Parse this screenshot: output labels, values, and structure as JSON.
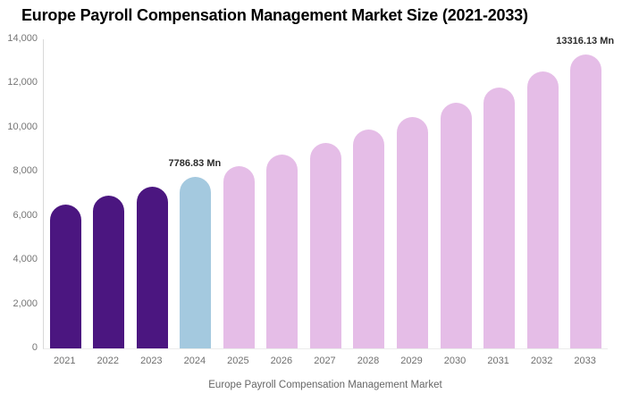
{
  "chart_data": {
    "type": "bar",
    "title": "Europe Payroll Compensation Management Market Size (2021-2033)",
    "unit": "Mn",
    "categories": [
      "2021",
      "2022",
      "2023",
      "2024",
      "2025",
      "2026",
      "2027",
      "2028",
      "2029",
      "2030",
      "2031",
      "2032",
      "2033"
    ],
    "values": [
      6510,
      6910,
      7340,
      7786.83,
      8250,
      8790,
      9310,
      9900,
      10490,
      11140,
      11820,
      12550,
      13316.13
    ],
    "bar_groups": [
      "historical",
      "historical",
      "historical",
      "current",
      "forecast",
      "forecast",
      "forecast",
      "forecast",
      "forecast",
      "forecast",
      "forecast",
      "forecast",
      "forecast"
    ],
    "series_colors": {
      "historical": "#4B1680",
      "current": "#A4C9DF",
      "forecast": "#E5BDE7"
    },
    "annotations": [
      {
        "year": "2024",
        "text": "7786.83 Mn"
      },
      {
        "year": "2033",
        "text": "13316.13 Mn"
      }
    ],
    "ylim": [
      0,
      14000
    ],
    "ytick_labels": [
      "0",
      "2,000",
      "4,000",
      "6,000",
      "8,000",
      "10,000",
      "12,000",
      "14,000"
    ],
    "grid": "off",
    "legend_position": "bottom-center",
    "legend": [
      {
        "label": "Europe Payroll Compensation Management Market",
        "color": "#4B1680"
      }
    ],
    "text_colors": {
      "title": "#000000",
      "axis_labels": "#757575",
      "data_labels": "#2b2b2b",
      "legend_text": "#666666"
    }
  }
}
